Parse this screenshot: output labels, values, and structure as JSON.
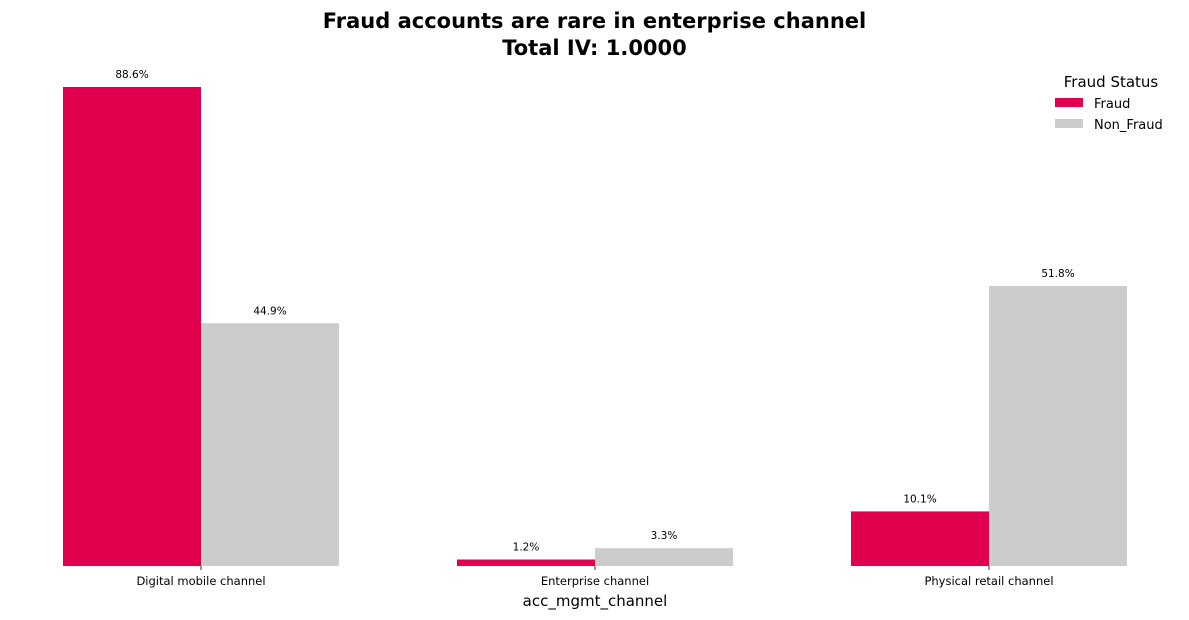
{
  "chart_data": {
    "type": "bar",
    "title": [
      "Fraud accounts are rare in enterprise channel",
      "Total IV: 1.0000"
    ],
    "xlabel": "acc_mgmt_channel",
    "ylabel": "",
    "categories": [
      "Digital mobile channel",
      "Enterprise channel",
      "Physical retail channel"
    ],
    "series": [
      {
        "name": "Fraud",
        "color": "#e0004d",
        "values": [
          88.6,
          1.2,
          10.1
        ],
        "labels": [
          "88.6%",
          "1.2%",
          "10.1%"
        ]
      },
      {
        "name": "Non_Fraud",
        "color": "#cccccc",
        "values": [
          44.9,
          3.3,
          51.8
        ],
        "labels": [
          "44.9%",
          "3.3%",
          "51.8%"
        ]
      }
    ],
    "ylim": [
      0,
      88.6
    ],
    "grid": false,
    "legend": {
      "title": "Fraud Status",
      "placement": "top-right"
    }
  }
}
